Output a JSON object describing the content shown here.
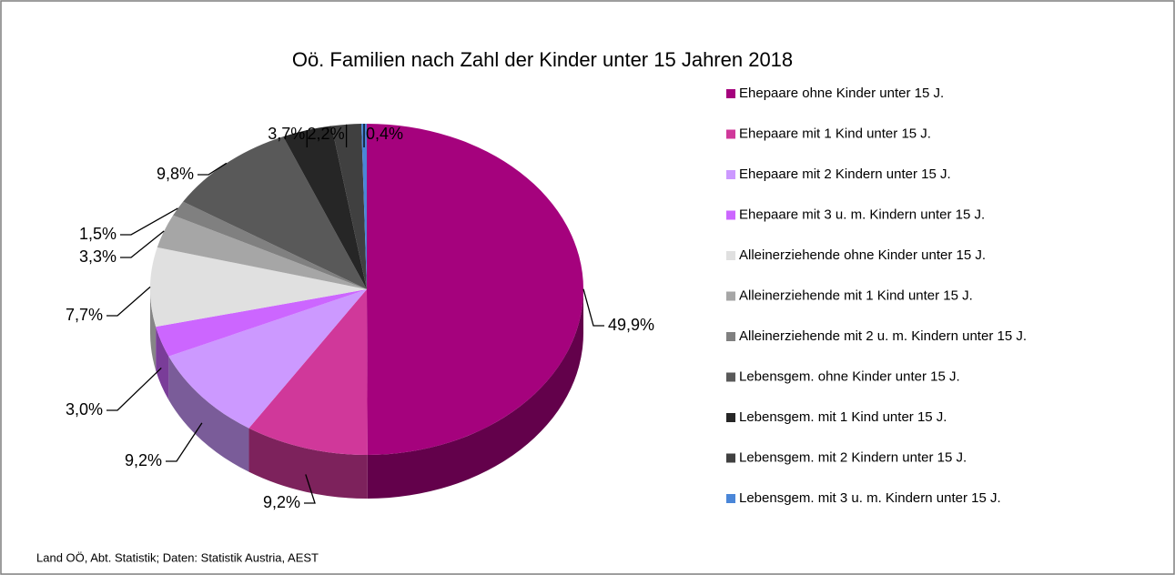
{
  "chart_data": {
    "type": "pie",
    "title": "Oö. Familien nach Zahl der Kinder unter 15 Jahren 2018",
    "categories": [
      "Ehepaare ohne Kinder unter 15 J.",
      "Ehepaare mit 1 Kind unter 15 J.",
      "Ehepaare mit 2 Kindern unter 15 J.",
      "Ehepaare mit 3 u. m. Kindern unter 15 J.",
      "Alleinerziehende ohne Kinder unter 15 J.",
      "Alleinerziehende mit 1 Kind unter 15 J.",
      "Alleinerziehende mit 2 u. m. Kindern unter 15 J.",
      "Lebensgem. ohne Kinder unter 15 J.",
      "Lebensgem. mit 1 Kind unter 15 J.",
      "Lebensgem. mit 2 Kindern unter 15 J.",
      "Lebensgem. mit 3 u. m. Kindern unter 15 J."
    ],
    "values": [
      49.9,
      9.2,
      9.2,
      3.0,
      7.7,
      3.3,
      1.5,
      9.8,
      3.7,
      2.2,
      0.4
    ],
    "value_labels": [
      "49,9%",
      "9,2%",
      "9,2%",
      "3,0%",
      "7,7%",
      "3,3%",
      "1,5%",
      "9,8%",
      "3,7%",
      "2,2%",
      "0,4%"
    ],
    "colors": [
      "#a5027d",
      "#d0389a",
      "#cc99ff",
      "#cc66ff",
      "#e0e0e0",
      "#a6a6a6",
      "#808080",
      "#595959",
      "#262626",
      "#404040",
      "#4a86d8"
    ],
    "legend": "right",
    "source": "Land OÖ, Abt. Statistik; Daten: Statistik Austria, AEST"
  }
}
